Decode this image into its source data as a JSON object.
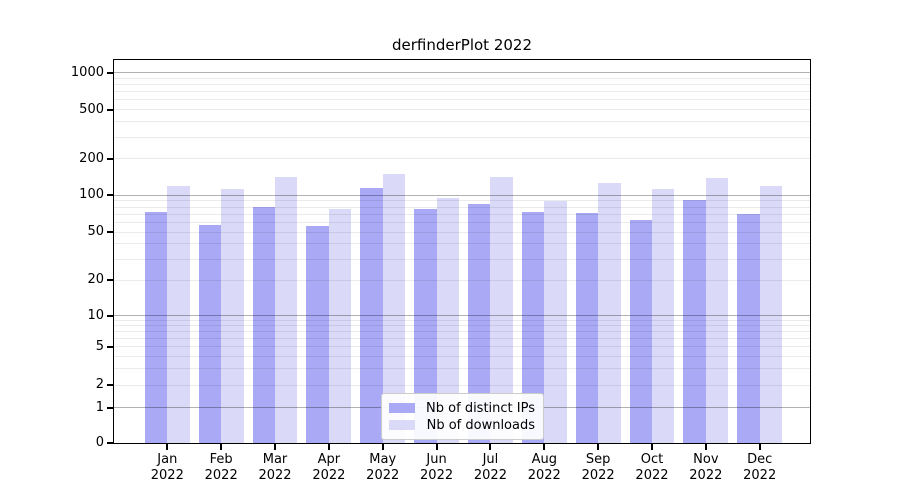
{
  "title": "derfinderPlot 2022",
  "chart_data": {
    "type": "bar",
    "title": "derfinderPlot 2022",
    "axis_scale": "symlog (log-like y axis with 0 baseline)",
    "months": [
      "Jan",
      "Feb",
      "Mar",
      "Apr",
      "May",
      "Jun",
      "Jul",
      "Aug",
      "Sep",
      "Oct",
      "Nov",
      "Dec"
    ],
    "year": "2022",
    "series": [
      {
        "name": "Nb of distinct IPs",
        "color": "#a9a9f5",
        "values": [
          73,
          57,
          80,
          56,
          115,
          77,
          84,
          73,
          71,
          63,
          91,
          70
        ]
      },
      {
        "name": "Nb of downloads",
        "color": "#dadaf8",
        "values": [
          119,
          112,
          141,
          77,
          149,
          95,
          142,
          90,
          125,
          112,
          139,
          120
        ]
      }
    ],
    "y_ticks": [
      0,
      1,
      2,
      5,
      10,
      20,
      50,
      100,
      200,
      500,
      1000
    ],
    "ylim": [
      0,
      1150
    ],
    "grid": true,
    "legend_position": "bottom-center",
    "xlabel": "",
    "ylabel": ""
  }
}
